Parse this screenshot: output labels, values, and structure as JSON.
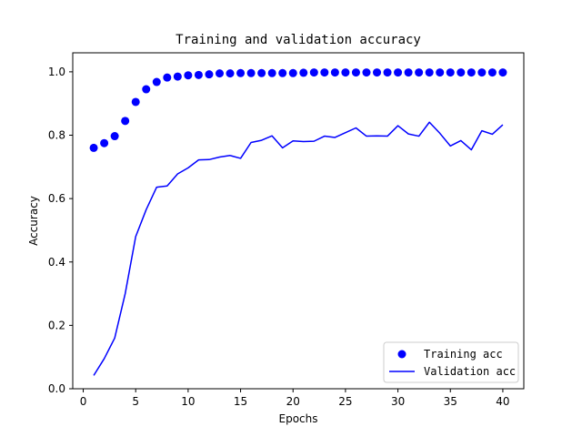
{
  "chart_data": {
    "type": "line",
    "title": "Training and validation accuracy",
    "xlabel": "Epochs",
    "ylabel": "Accuracy",
    "xlim": [
      -1,
      42
    ],
    "ylim": [
      -0.0,
      1.06
    ],
    "xticks": [
      0,
      5,
      10,
      15,
      20,
      25,
      30,
      35,
      40
    ],
    "xtick_labels": [
      "0",
      "5",
      "10",
      "15",
      "20",
      "25",
      "30",
      "35",
      "40"
    ],
    "yticks": [
      0.0,
      0.2,
      0.4,
      0.6,
      0.8,
      1.0
    ],
    "ytick_labels": [
      "0.0",
      "0.2",
      "0.4",
      "0.6",
      "0.8",
      "1.0"
    ],
    "grid": false,
    "legend_position": "lower-right",
    "x": [
      1,
      2,
      3,
      4,
      5,
      6,
      7,
      8,
      9,
      10,
      11,
      12,
      13,
      14,
      15,
      16,
      17,
      18,
      19,
      20,
      21,
      22,
      23,
      24,
      25,
      26,
      27,
      28,
      29,
      30,
      31,
      32,
      33,
      34,
      35,
      36,
      37,
      38,
      39,
      40
    ],
    "series": [
      {
        "name": "Training acc",
        "style": "markers",
        "color": "#0000ff",
        "values": [
          0.76,
          0.775,
          0.797,
          0.845,
          0.905,
          0.945,
          0.968,
          0.982,
          0.985,
          0.989,
          0.99,
          0.992,
          0.995,
          0.995,
          0.996,
          0.996,
          0.996,
          0.996,
          0.996,
          0.996,
          0.997,
          0.998,
          0.998,
          0.998,
          0.998,
          0.998,
          0.998,
          0.998,
          0.998,
          0.998,
          0.998,
          0.998,
          0.998,
          0.998,
          0.998,
          0.998,
          0.998,
          0.998,
          0.998,
          0.998
        ]
      },
      {
        "name": "Validation acc",
        "style": "line",
        "color": "#0000ff",
        "values": [
          0.042,
          0.095,
          0.16,
          0.3,
          0.48,
          0.565,
          0.636,
          0.64,
          0.678,
          0.697,
          0.722,
          0.723,
          0.731,
          0.736,
          0.727,
          0.777,
          0.784,
          0.798,
          0.76,
          0.782,
          0.78,
          0.781,
          0.797,
          0.793,
          0.808,
          0.823,
          0.797,
          0.798,
          0.797,
          0.83,
          0.804,
          0.797,
          0.841,
          0.806,
          0.766,
          0.783,
          0.754,
          0.814,
          0.803,
          0.833
        ]
      }
    ]
  }
}
